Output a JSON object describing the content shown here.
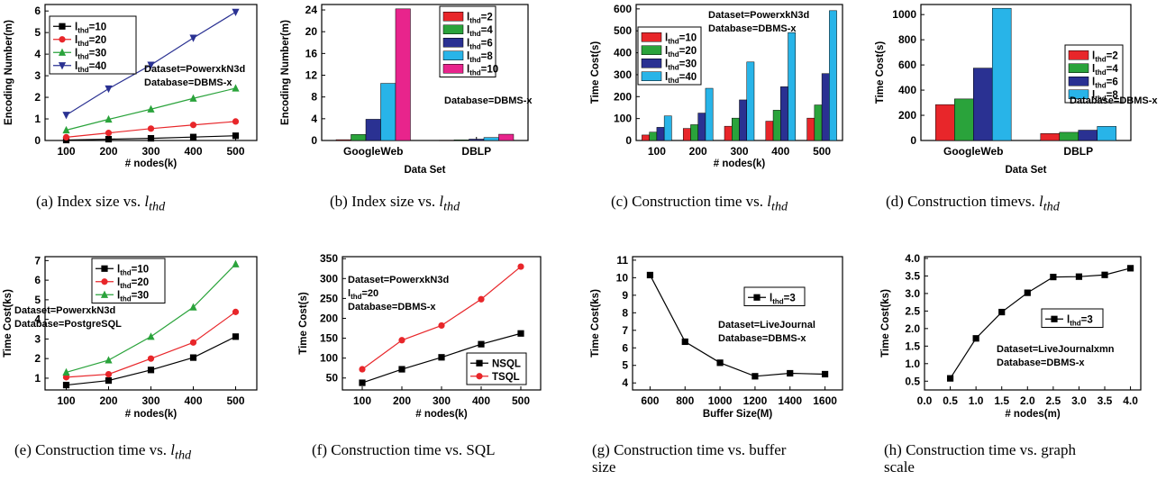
{
  "colors": {
    "black": "#000000",
    "red": "#e8262a",
    "green": "#2aa33b",
    "blue": "#2a3192",
    "cyan": "#28b4e8",
    "magenta": "#e8248c"
  },
  "captions": [
    {
      "label": "(a) Index size vs. ",
      "math": "l",
      "sub": "thd"
    },
    {
      "label": "(b) Index size vs. ",
      "math": "l",
      "sub": "thd"
    },
    {
      "label": "(c) Construction time vs. ",
      "math": "l",
      "sub": "thd"
    },
    {
      "label": "(d) Construction timevs. ",
      "math": "l",
      "sub": "thd"
    },
    {
      "label": "(e) Construction time vs. ",
      "math": "l",
      "sub": "thd"
    },
    {
      "label": "(f) Construction time vs. SQL",
      "math": "",
      "sub": ""
    },
    {
      "label": "(g) Construction time vs.  buffer\nsize",
      "math": "",
      "sub": ""
    },
    {
      "label": "(h) Construction time vs.  graph\nscale",
      "math": "",
      "sub": ""
    }
  ],
  "chart_data": [
    {
      "type": "line",
      "xlabel": "# nodes(k)",
      "ylabel": "Encoding Number(m)",
      "x": [
        100,
        200,
        300,
        400,
        500
      ],
      "xlim": [
        50,
        550
      ],
      "ylim": [
        0,
        6.3
      ],
      "xticks": [
        100,
        200,
        300,
        400,
        500
      ],
      "yticks": [
        0,
        1,
        2,
        3,
        4,
        5,
        6
      ],
      "series": [
        {
          "name": "l_thd=10",
          "color": "#000000",
          "marker": "square",
          "values": [
            0.02,
            0.06,
            0.1,
            0.16,
            0.22
          ]
        },
        {
          "name": "l_thd=20",
          "color": "#e8262a",
          "marker": "circle",
          "values": [
            0.15,
            0.35,
            0.55,
            0.72,
            0.88
          ]
        },
        {
          "name": "l_thd=30",
          "color": "#2aa33b",
          "marker": "triangle",
          "values": [
            0.48,
            0.98,
            1.45,
            1.95,
            2.42
          ]
        },
        {
          "name": "l_thd=40",
          "color": "#2a3192",
          "marker": "triangle-down",
          "values": [
            1.18,
            2.4,
            3.5,
            4.75,
            5.95
          ]
        }
      ],
      "legend_sub": "thd",
      "annotations": [
        "Dataset=PowerxkN3d",
        "Database=DBMS-x"
      ]
    },
    {
      "type": "bar",
      "xlabel": "Data Set",
      "ylabel": "Encoding Number(m)",
      "categories": [
        "GoogleWeb",
        "DBLP"
      ],
      "ylim": [
        0,
        25
      ],
      "yticks": [
        0,
        4,
        8,
        12,
        16,
        20,
        24
      ],
      "series": [
        {
          "name": "l_thd=2",
          "color": "#e8262a",
          "values": [
            0.15,
            0.05
          ]
        },
        {
          "name": "l_thd=4",
          "color": "#2aa33b",
          "values": [
            1.1,
            0.12
          ]
        },
        {
          "name": "l_thd=6",
          "color": "#2a3192",
          "values": [
            3.9,
            0.25
          ]
        },
        {
          "name": "l_thd=8",
          "color": "#28b4e8",
          "values": [
            10.5,
            0.55
          ]
        },
        {
          "name": "l_thd=10",
          "color": "#e8248c",
          "values": [
            24.2,
            1.15
          ]
        }
      ],
      "legend_sub": "thd",
      "annotations": [
        "Database=DBMS-x"
      ]
    },
    {
      "type": "bar",
      "xlabel": "# nodes(k)",
      "ylabel": "Time Cost(s)",
      "categories": [
        "100",
        "200",
        "300",
        "400",
        "500"
      ],
      "ylim": [
        0,
        620
      ],
      "yticks": [
        0,
        100,
        200,
        300,
        400,
        500,
        600
      ],
      "series": [
        {
          "name": "l_thd=10",
          "color": "#e8262a",
          "values": [
            25,
            55,
            65,
            88,
            102
          ]
        },
        {
          "name": "l_thd=20",
          "color": "#2aa33b",
          "values": [
            38,
            72,
            102,
            138,
            162
          ]
        },
        {
          "name": "l_thd=30",
          "color": "#2a3192",
          "values": [
            60,
            125,
            185,
            245,
            305
          ]
        },
        {
          "name": "l_thd=40",
          "color": "#28b4e8",
          "values": [
            112,
            238,
            358,
            492,
            592
          ]
        }
      ],
      "legend_sub": "thd",
      "annotations": [
        "Dataset=PowerxkN3d",
        "Database=DBMS-x"
      ]
    },
    {
      "type": "bar",
      "xlabel": "Data Set",
      "ylabel": "Time Cost(s)",
      "categories": [
        "GoogleWeb",
        "DBLP"
      ],
      "ylim": [
        0,
        1080
      ],
      "yticks": [
        0,
        200,
        400,
        600,
        800,
        1000
      ],
      "series": [
        {
          "name": "l_thd=2",
          "color": "#e8262a",
          "values": [
            285,
            55
          ]
        },
        {
          "name": "l_thd=4",
          "color": "#2aa33b",
          "values": [
            330,
            65
          ]
        },
        {
          "name": "l_thd=6",
          "color": "#2a3192",
          "values": [
            575,
            82
          ]
        },
        {
          "name": "l_thd=8",
          "color": "#28b4e8",
          "values": [
            1050,
            112
          ]
        }
      ],
      "legend_sub": "thd",
      "annotations": [
        "Database=DBMS-x"
      ]
    },
    {
      "type": "line",
      "xlabel": "# nodes(k)",
      "ylabel": "Time Cost(ks)",
      "x": [
        100,
        200,
        300,
        400,
        500
      ],
      "xlim": [
        50,
        550
      ],
      "ylim": [
        0.4,
        7.2
      ],
      "xticks": [
        100,
        200,
        300,
        400,
        500
      ],
      "yticks": [
        1,
        2,
        3,
        4,
        5,
        6,
        7
      ],
      "series": [
        {
          "name": "l_thd=10",
          "color": "#000000",
          "marker": "square",
          "values": [
            0.65,
            0.88,
            1.42,
            2.05,
            3.12
          ]
        },
        {
          "name": "l_thd=20",
          "color": "#e8262a",
          "marker": "circle",
          "values": [
            1.05,
            1.2,
            2.0,
            2.82,
            4.38
          ]
        },
        {
          "name": "l_thd=30",
          "color": "#2aa33b",
          "marker": "triangle",
          "values": [
            1.3,
            1.92,
            3.12,
            4.62,
            6.82
          ]
        }
      ],
      "legend_sub": "thd",
      "annotations": [
        "Dataset=PowerxkN3d",
        "Database=PostgreSQL"
      ]
    },
    {
      "type": "line",
      "xlabel": "# nodes(k)",
      "ylabel": "Time Cost(s)",
      "x": [
        100,
        200,
        300,
        400,
        500
      ],
      "xlim": [
        50,
        550
      ],
      "ylim": [
        20,
        355
      ],
      "xticks": [
        100,
        200,
        300,
        400,
        500
      ],
      "yticks": [
        50,
        100,
        150,
        200,
        250,
        300,
        350
      ],
      "series": [
        {
          "name": "NSQL",
          "color": "#000000",
          "marker": "square",
          "values": [
            38,
            72,
            102,
            135,
            162
          ]
        },
        {
          "name": "TSQL",
          "color": "#e8262a",
          "marker": "circle",
          "values": [
            72,
            145,
            182,
            248,
            330
          ]
        }
      ],
      "annotations": [
        "Dataset=PowerxkN3d",
        "l_thd=20",
        "Database=DBMS-x"
      ]
    },
    {
      "type": "line",
      "xlabel": "Buffer Size(M)",
      "ylabel": "Time Cost(ks)",
      "x": [
        600,
        800,
        1000,
        1200,
        1400,
        1600
      ],
      "xlim": [
        500,
        1700
      ],
      "ylim": [
        3.6,
        11.2
      ],
      "xticks": [
        600,
        800,
        1000,
        1200,
        1400,
        1600
      ],
      "yticks": [
        4,
        5,
        6,
        7,
        8,
        9,
        10,
        11
      ],
      "series": [
        {
          "name": "l_thd=3",
          "color": "#000000",
          "marker": "square",
          "values": [
            10.15,
            6.35,
            5.15,
            4.38,
            4.55,
            4.5
          ]
        }
      ],
      "legend_sub": "thd",
      "annotations": [
        "Dataset=LiveJournal",
        "Database=DBMS-x"
      ]
    },
    {
      "type": "line",
      "xlabel": "# nodes(m)",
      "ylabel": "Time Cost(ks)",
      "x": [
        0.5,
        1.0,
        1.5,
        2.0,
        2.5,
        3.0,
        3.5,
        4.0
      ],
      "xlim": [
        0,
        4.2
      ],
      "ylim": [
        0.25,
        4.05
      ],
      "xticks": [
        0.0,
        0.5,
        1.0,
        1.5,
        2.0,
        2.5,
        3.0,
        3.5,
        4.0
      ],
      "yticks": [
        0.5,
        1.0,
        1.5,
        2.0,
        2.5,
        3.0,
        3.5,
        4.0
      ],
      "series": [
        {
          "name": "l_thd=3",
          "color": "#000000",
          "marker": "square",
          "values": [
            0.58,
            1.72,
            2.47,
            3.02,
            3.47,
            3.48,
            3.53,
            3.72
          ]
        }
      ],
      "legend_sub": "thd",
      "annotations": [
        "Dataset=LiveJournalxmn",
        "Database=DBMS-x"
      ]
    }
  ]
}
